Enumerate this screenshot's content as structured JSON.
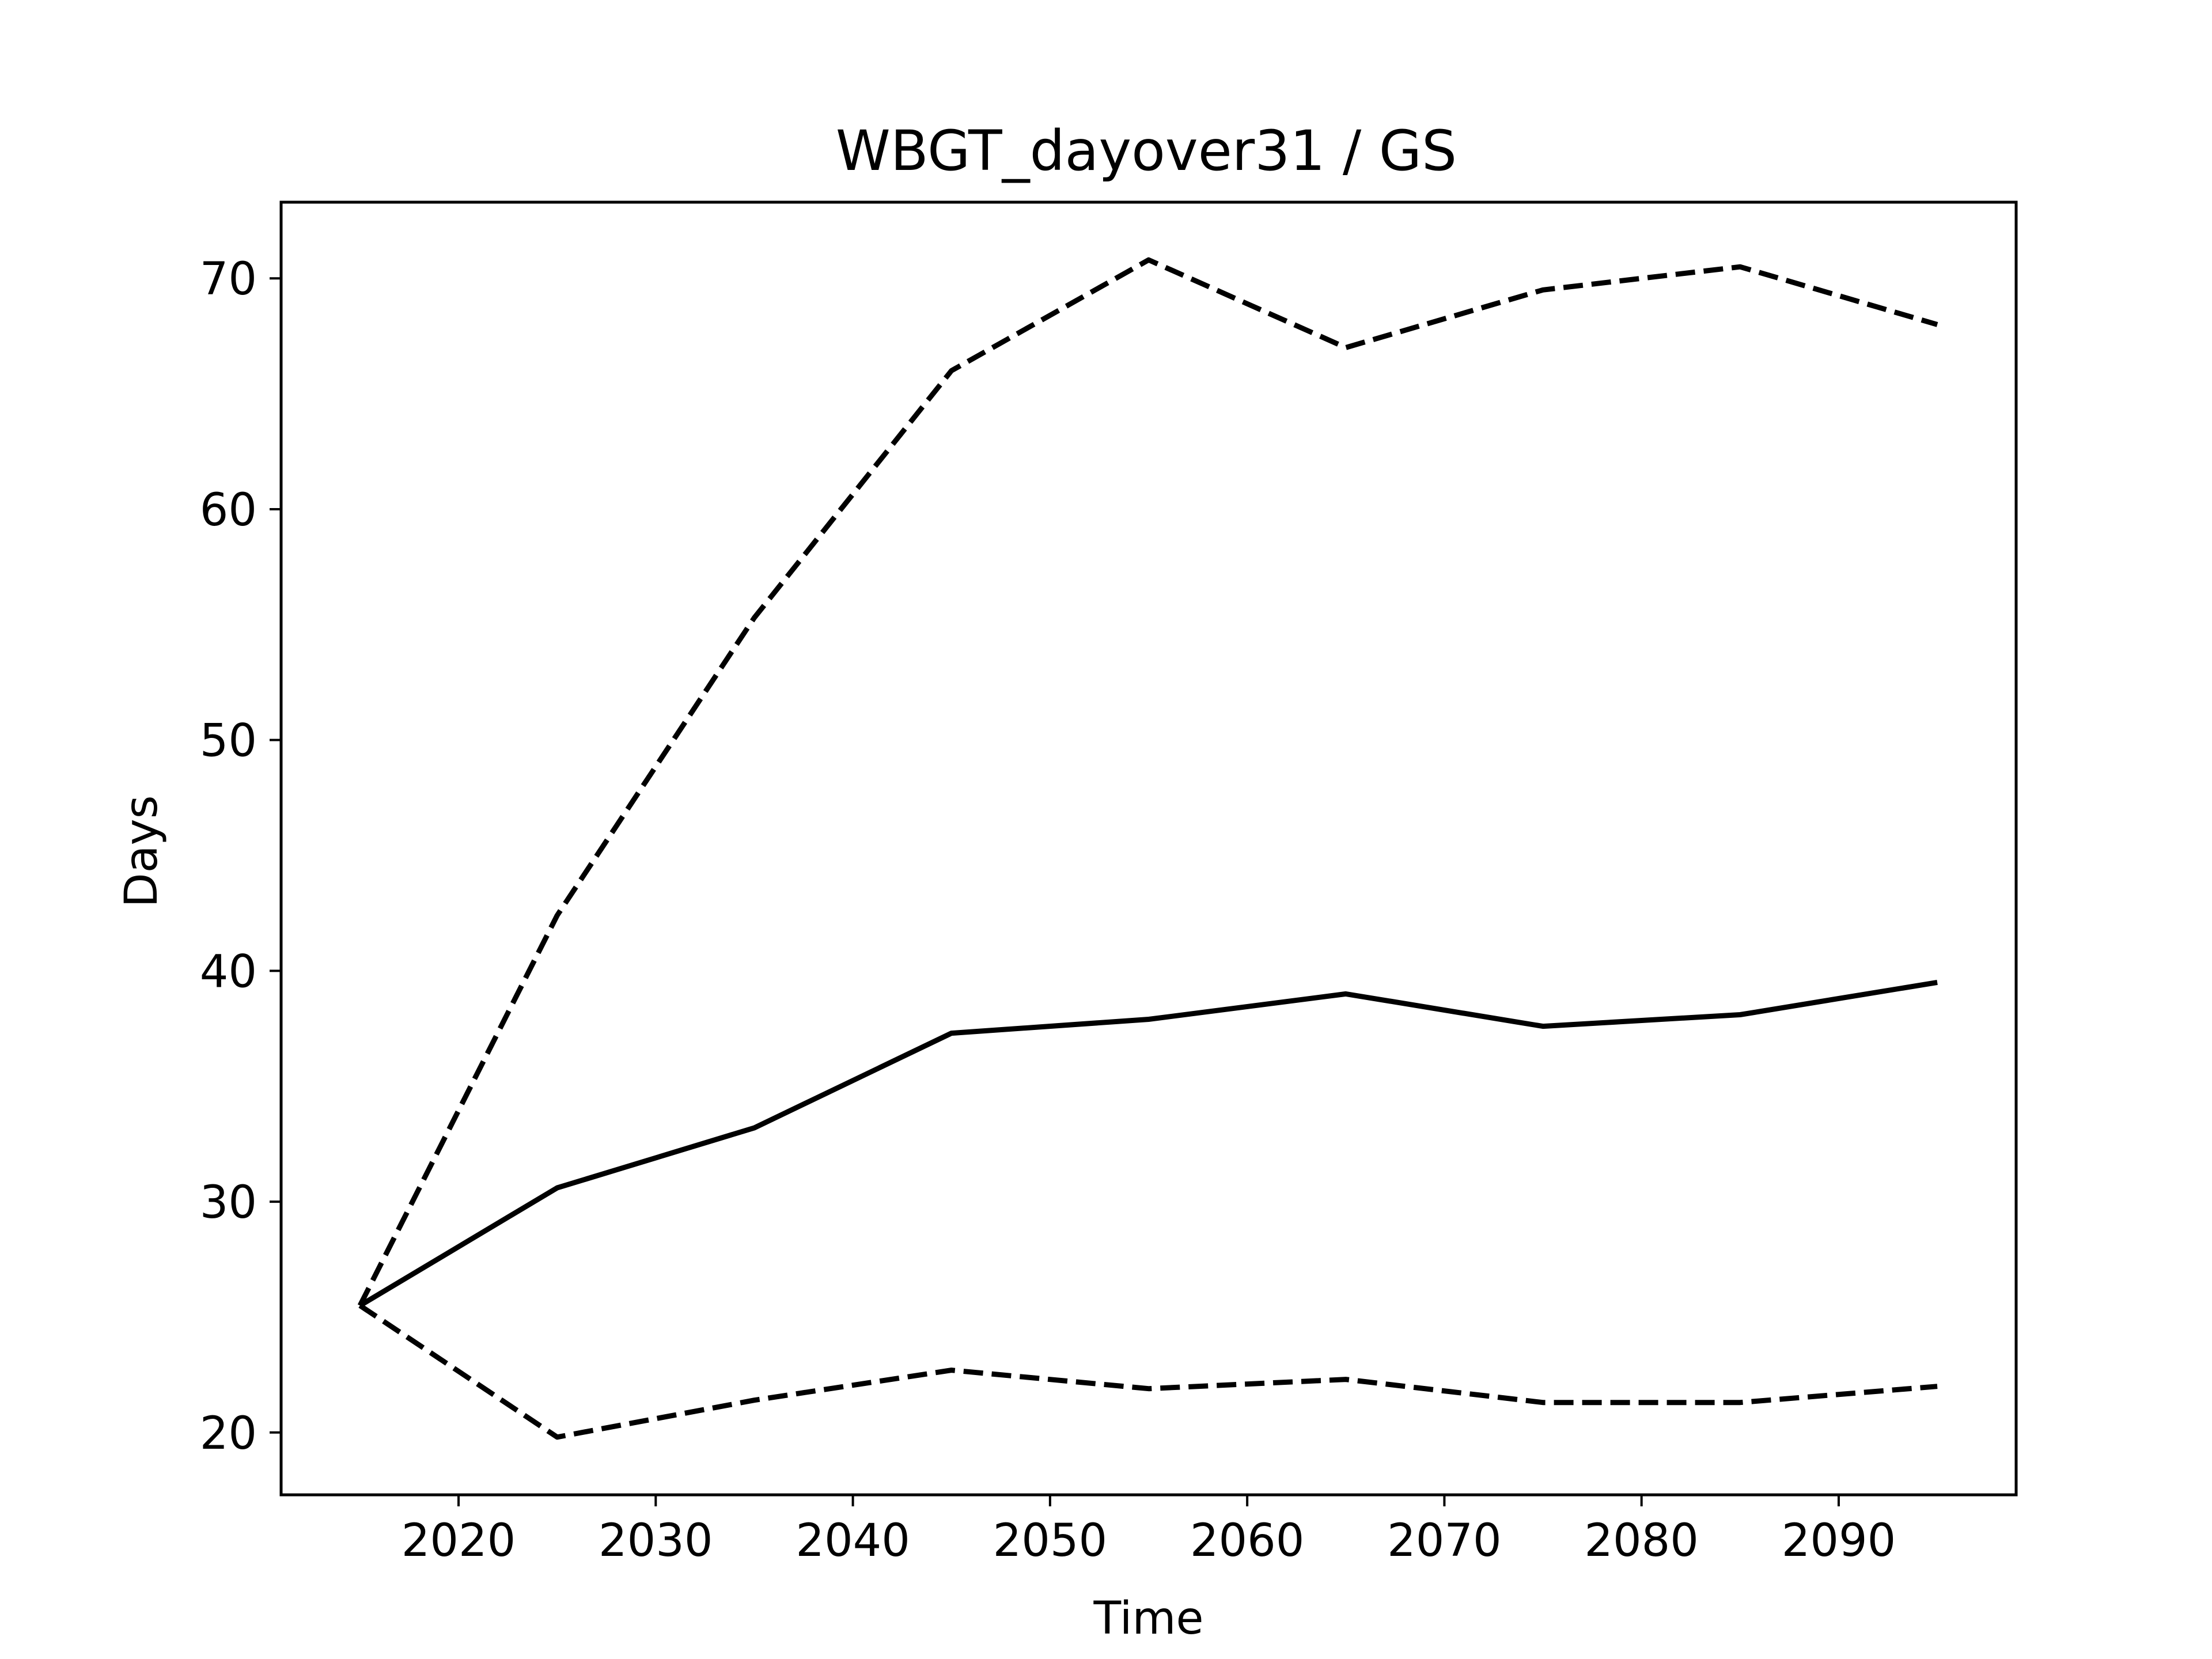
{
  "chart_data": {
    "type": "line",
    "title": "WBGT_dayover31 / GS",
    "xlabel": "Time",
    "ylabel": "Days",
    "x": [
      2015,
      2025,
      2035,
      2045,
      2055,
      2065,
      2075,
      2085,
      2095
    ],
    "xlim": [
      2011,
      2099
    ],
    "ylim": [
      17.3,
      73.3
    ],
    "xticks": [
      2020,
      2030,
      2040,
      2050,
      2060,
      2070,
      2080,
      2090
    ],
    "yticks": [
      20,
      30,
      40,
      50,
      60,
      70
    ],
    "grid": false,
    "series": [
      {
        "style": "solid",
        "color": "#000000",
        "values": [
          25.5,
          30.6,
          33.2,
          37.3,
          37.9,
          39.0,
          37.6,
          38.1,
          39.5
        ]
      },
      {
        "style": "dashed",
        "color": "#000000",
        "values": [
          25.5,
          42.4,
          55.3,
          66.0,
          70.8,
          67.0,
          69.5,
          70.5,
          68.0
        ]
      },
      {
        "style": "dashed",
        "color": "#000000",
        "values": [
          25.5,
          19.8,
          21.4,
          22.7,
          21.9,
          22.3,
          21.3,
          21.3,
          22.0
        ]
      }
    ]
  }
}
